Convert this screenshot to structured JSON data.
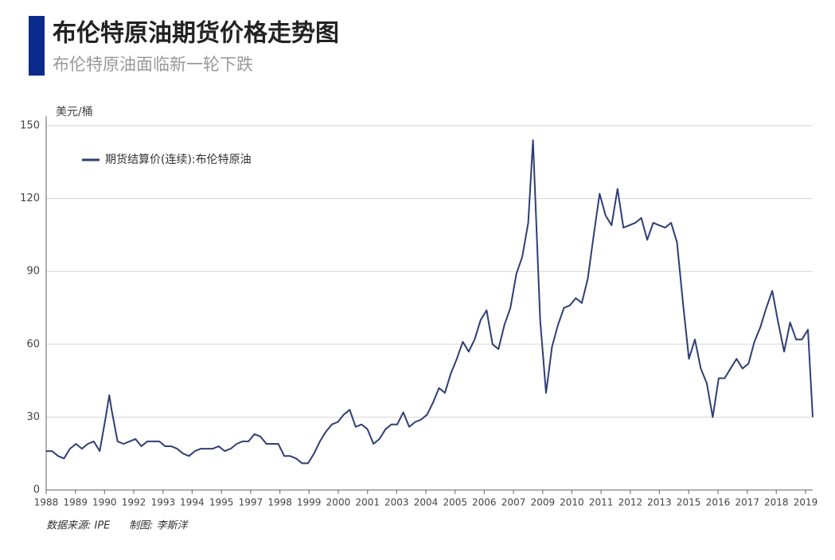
{
  "chart_data": {
    "type": "line",
    "title": "布伦特原油期货价格走势图",
    "subtitle": "布伦特原油面临新一轮下跌",
    "y_label": "美元/桶",
    "source": "数据来源: IPE",
    "author": "制图: 李斯洋",
    "legend": "upper left",
    "grid": true,
    "xlim": [
      1988,
      2020.2
    ],
    "ylim": [
      0,
      150
    ],
    "yticks": [
      0,
      30,
      60,
      90,
      120,
      150
    ],
    "xticks": [
      {
        "value": 1988.0,
        "label": "1988"
      },
      {
        "value": 1989.23,
        "label": "1989"
      },
      {
        "value": 1990.45,
        "label": "1990"
      },
      {
        "value": 1991.68,
        "label": "1992"
      },
      {
        "value": 1992.91,
        "label": "1993"
      },
      {
        "value": 1994.13,
        "label": "1994"
      },
      {
        "value": 1995.36,
        "label": "1995"
      },
      {
        "value": 1996.59,
        "label": "1997"
      },
      {
        "value": 1997.82,
        "label": "1998"
      },
      {
        "value": 1999.04,
        "label": "1999"
      },
      {
        "value": 2000.27,
        "label": "2000"
      },
      {
        "value": 2001.5,
        "label": "2001"
      },
      {
        "value": 2002.72,
        "label": "2003"
      },
      {
        "value": 2003.95,
        "label": "2004"
      },
      {
        "value": 2005.18,
        "label": "2005"
      },
      {
        "value": 2006.4,
        "label": "2006"
      },
      {
        "value": 2007.63,
        "label": "2007"
      },
      {
        "value": 2008.86,
        "label": "2009"
      },
      {
        "value": 2010.08,
        "label": "2010"
      },
      {
        "value": 2011.31,
        "label": "2011"
      },
      {
        "value": 2012.54,
        "label": "2012"
      },
      {
        "value": 2013.76,
        "label": "2013"
      },
      {
        "value": 2014.99,
        "label": "2015"
      },
      {
        "value": 2016.22,
        "label": "2016"
      },
      {
        "value": 2017.45,
        "label": "2017"
      },
      {
        "value": 2018.67,
        "label": "2018"
      },
      {
        "value": 2019.9,
        "label": "2019"
      }
    ],
    "series": [
      {
        "name": "期货结算价(连续):布伦特原油",
        "color": "#2f3e75",
        "x": [
          1988.0,
          1988.25,
          1988.5,
          1988.75,
          1989.0,
          1989.25,
          1989.5,
          1989.75,
          1990.0,
          1990.25,
          1990.5,
          1990.65,
          1990.75,
          1991.0,
          1991.25,
          1991.5,
          1991.75,
          1992.0,
          1992.25,
          1992.5,
          1992.75,
          1993.0,
          1993.25,
          1993.5,
          1993.75,
          1994.0,
          1994.25,
          1994.5,
          1994.75,
          1995.0,
          1995.25,
          1995.5,
          1995.75,
          1996.0,
          1996.25,
          1996.5,
          1996.75,
          1997.0,
          1997.25,
          1997.5,
          1997.75,
          1998.0,
          1998.25,
          1998.5,
          1998.75,
          1999.0,
          1999.25,
          1999.5,
          1999.75,
          2000.0,
          2000.25,
          2000.5,
          2000.75,
          2001.0,
          2001.25,
          2001.5,
          2001.75,
          2002.0,
          2002.25,
          2002.5,
          2002.75,
          2003.0,
          2003.25,
          2003.5,
          2003.75,
          2004.0,
          2004.25,
          2004.5,
          2004.75,
          2005.0,
          2005.25,
          2005.5,
          2005.75,
          2006.0,
          2006.25,
          2006.5,
          2006.75,
          2007.0,
          2007.25,
          2007.5,
          2007.75,
          2008.0,
          2008.25,
          2008.45,
          2008.75,
          2009.0,
          2009.25,
          2009.5,
          2009.75,
          2010.0,
          2010.25,
          2010.5,
          2010.75,
          2011.0,
          2011.25,
          2011.5,
          2011.75,
          2012.0,
          2012.25,
          2012.5,
          2012.75,
          2013.0,
          2013.25,
          2013.5,
          2013.75,
          2014.0,
          2014.25,
          2014.5,
          2014.75,
          2015.0,
          2015.25,
          2015.5,
          2015.75,
          2016.0,
          2016.25,
          2016.5,
          2016.75,
          2017.0,
          2017.25,
          2017.5,
          2017.75,
          2018.0,
          2018.25,
          2018.5,
          2018.75,
          2019.0,
          2019.25,
          2019.5,
          2019.75,
          2020.0,
          2020.2
        ],
        "values": [
          16,
          16,
          14,
          13,
          17,
          19,
          17,
          19,
          20,
          16,
          30,
          39,
          33,
          20,
          19,
          20,
          21,
          18,
          20,
          20,
          20,
          18,
          18,
          17,
          15,
          14,
          16,
          17,
          17,
          17,
          18,
          16,
          17,
          19,
          20,
          20,
          23,
          22,
          19,
          19,
          19,
          14,
          14,
          13,
          11,
          11,
          15,
          20,
          24,
          27,
          28,
          31,
          33,
          26,
          27,
          25,
          19,
          21,
          25,
          27,
          27,
          32,
          26,
          28,
          29,
          31,
          36,
          42,
          40,
          48,
          54,
          61,
          57,
          62,
          70,
          74,
          60,
          58,
          68,
          75,
          89,
          96,
          110,
          144,
          70,
          40,
          59,
          68,
          75,
          76,
          79,
          77,
          87,
          105,
          122,
          113,
          109,
          124,
          108,
          109,
          110,
          112,
          103,
          110,
          109,
          108,
          110,
          102,
          77,
          54,
          62,
          50,
          44,
          30,
          46,
          46,
          50,
          54,
          50,
          52,
          61,
          67,
          75,
          82,
          69,
          57,
          69,
          62,
          62,
          66,
          30
        ]
      }
    ]
  }
}
